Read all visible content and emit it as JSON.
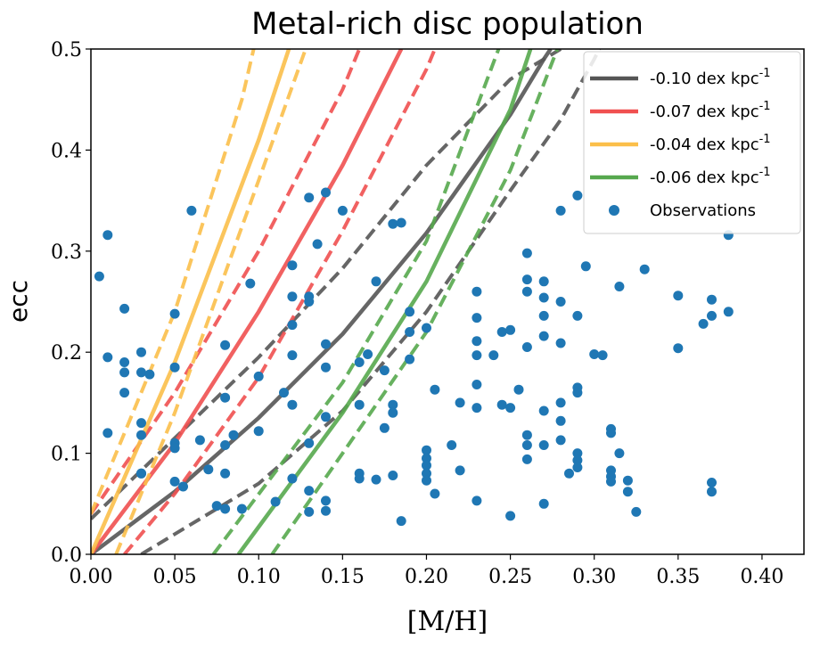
{
  "chart_data": {
    "type": "scatter",
    "title": "Metal-rich disc population",
    "xlabel": "[M/H]",
    "ylabel": "ecc",
    "xlim": [
      0.0,
      0.425
    ],
    "ylim": [
      0.0,
      0.5
    ],
    "xticks": [
      "0.00",
      "0.05",
      "0.10",
      "0.15",
      "0.20",
      "0.25",
      "0.30",
      "0.35",
      "0.40"
    ],
    "yticks": [
      "0.0",
      "0.1",
      "0.2",
      "0.3",
      "0.4",
      "0.5"
    ],
    "grid": false,
    "legend_position": "top-right",
    "series": [
      {
        "name": "-0.10 dex kpc",
        "name_superscript": "-1",
        "kind": "model",
        "color": "#555555",
        "center": [
          [
            0.0,
            0.0
          ],
          [
            0.05,
            0.062
          ],
          [
            0.1,
            0.135
          ],
          [
            0.15,
            0.218
          ],
          [
            0.2,
            0.318
          ],
          [
            0.25,
            0.435
          ],
          [
            0.27,
            0.49
          ],
          [
            0.274,
            0.5
          ]
        ],
        "upper": [
          [
            0.0,
            0.035
          ],
          [
            0.05,
            0.115
          ],
          [
            0.1,
            0.195
          ],
          [
            0.15,
            0.283
          ],
          [
            0.2,
            0.385
          ],
          [
            0.25,
            0.47
          ],
          [
            0.28,
            0.5
          ]
        ],
        "lower": [
          [
            0.03,
            0.0
          ],
          [
            0.1,
            0.07
          ],
          [
            0.15,
            0.142
          ],
          [
            0.2,
            0.24
          ],
          [
            0.25,
            0.36
          ],
          [
            0.28,
            0.43
          ],
          [
            0.3,
            0.49
          ],
          [
            0.303,
            0.5
          ]
        ]
      },
      {
        "name": "-0.07 dex kpc",
        "name_superscript": "-1",
        "kind": "model",
        "color": "#f05050",
        "center": [
          [
            0.0,
            0.0
          ],
          [
            0.05,
            0.11
          ],
          [
            0.1,
            0.24
          ],
          [
            0.15,
            0.385
          ],
          [
            0.185,
            0.5
          ]
        ],
        "upper": [
          [
            0.0,
            0.04
          ],
          [
            0.05,
            0.16
          ],
          [
            0.1,
            0.3
          ],
          [
            0.15,
            0.46
          ],
          [
            0.16,
            0.5
          ]
        ],
        "lower": [
          [
            0.02,
            0.0
          ],
          [
            0.05,
            0.06
          ],
          [
            0.1,
            0.175
          ],
          [
            0.15,
            0.32
          ],
          [
            0.2,
            0.48
          ],
          [
            0.205,
            0.5
          ]
        ]
      },
      {
        "name": "-0.04 dex kpc",
        "name_superscript": "-1",
        "kind": "model",
        "color": "#fbbf4a",
        "center": [
          [
            0.0,
            0.0
          ],
          [
            0.05,
            0.19
          ],
          [
            0.1,
            0.41
          ],
          [
            0.118,
            0.5
          ]
        ],
        "upper": [
          [
            0.0,
            0.04
          ],
          [
            0.05,
            0.24
          ],
          [
            0.09,
            0.45
          ],
          [
            0.097,
            0.5
          ]
        ],
        "lower": [
          [
            0.015,
            0.0
          ],
          [
            0.05,
            0.14
          ],
          [
            0.1,
            0.37
          ],
          [
            0.128,
            0.5
          ]
        ]
      },
      {
        "name": "-0.06 dex kpc",
        "name_superscript": "-1",
        "kind": "model",
        "color": "#56a84e",
        "center": [
          [
            0.088,
            0.0
          ],
          [
            0.15,
            0.14
          ],
          [
            0.2,
            0.27
          ],
          [
            0.25,
            0.44
          ],
          [
            0.262,
            0.5
          ]
        ],
        "upper": [
          [
            0.073,
            0.0
          ],
          [
            0.15,
            0.17
          ],
          [
            0.2,
            0.31
          ],
          [
            0.243,
            0.5
          ]
        ],
        "lower": [
          [
            0.108,
            0.0
          ],
          [
            0.15,
            0.1
          ],
          [
            0.2,
            0.22
          ],
          [
            0.25,
            0.38
          ],
          [
            0.278,
            0.5
          ]
        ]
      },
      {
        "name": "Observations",
        "kind": "scatter",
        "color": "#1f77b4",
        "points": [
          [
            0.005,
            0.275
          ],
          [
            0.01,
            0.316
          ],
          [
            0.01,
            0.195
          ],
          [
            0.01,
            0.12
          ],
          [
            0.02,
            0.243
          ],
          [
            0.02,
            0.19
          ],
          [
            0.02,
            0.18
          ],
          [
            0.02,
            0.16
          ],
          [
            0.03,
            0.2
          ],
          [
            0.03,
            0.18
          ],
          [
            0.035,
            0.178
          ],
          [
            0.03,
            0.13
          ],
          [
            0.03,
            0.118
          ],
          [
            0.03,
            0.08
          ],
          [
            0.03,
            0.08
          ],
          [
            0.05,
            0.238
          ],
          [
            0.05,
            0.185
          ],
          [
            0.05,
            0.11
          ],
          [
            0.05,
            0.105
          ],
          [
            0.05,
            0.072
          ],
          [
            0.055,
            0.067
          ],
          [
            0.06,
            0.34
          ],
          [
            0.065,
            0.113
          ],
          [
            0.07,
            0.084
          ],
          [
            0.075,
            0.048
          ],
          [
            0.08,
            0.207
          ],
          [
            0.08,
            0.155
          ],
          [
            0.08,
            0.108
          ],
          [
            0.08,
            0.08
          ],
          [
            0.08,
            0.045
          ],
          [
            0.085,
            0.118
          ],
          [
            0.09,
            0.045
          ],
          [
            0.095,
            0.268
          ],
          [
            0.1,
            0.176
          ],
          [
            0.1,
            0.122
          ],
          [
            0.11,
            0.052
          ],
          [
            0.115,
            0.16
          ],
          [
            0.12,
            0.286
          ],
          [
            0.12,
            0.255
          ],
          [
            0.12,
            0.227
          ],
          [
            0.12,
            0.197
          ],
          [
            0.12,
            0.148
          ],
          [
            0.12,
            0.075
          ],
          [
            0.13,
            0.353
          ],
          [
            0.13,
            0.255
          ],
          [
            0.13,
            0.25
          ],
          [
            0.13,
            0.11
          ],
          [
            0.13,
            0.063
          ],
          [
            0.13,
            0.042
          ],
          [
            0.135,
            0.307
          ],
          [
            0.14,
            0.358
          ],
          [
            0.14,
            0.208
          ],
          [
            0.14,
            0.185
          ],
          [
            0.14,
            0.136
          ],
          [
            0.14,
            0.053
          ],
          [
            0.14,
            0.043
          ],
          [
            0.15,
            0.34
          ],
          [
            0.16,
            0.19
          ],
          [
            0.16,
            0.148
          ],
          [
            0.16,
            0.08
          ],
          [
            0.16,
            0.075
          ],
          [
            0.165,
            0.198
          ],
          [
            0.17,
            0.27
          ],
          [
            0.17,
            0.074
          ],
          [
            0.175,
            0.182
          ],
          [
            0.175,
            0.125
          ],
          [
            0.18,
            0.327
          ],
          [
            0.18,
            0.148
          ],
          [
            0.18,
            0.14
          ],
          [
            0.18,
            0.078
          ],
          [
            0.185,
            0.328
          ],
          [
            0.185,
            0.033
          ],
          [
            0.19,
            0.24
          ],
          [
            0.19,
            0.22
          ],
          [
            0.19,
            0.193
          ],
          [
            0.2,
            0.224
          ],
          [
            0.2,
            0.103
          ],
          [
            0.2,
            0.095
          ],
          [
            0.2,
            0.088
          ],
          [
            0.2,
            0.08
          ],
          [
            0.2,
            0.073
          ],
          [
            0.205,
            0.163
          ],
          [
            0.205,
            0.06
          ],
          [
            0.215,
            0.108
          ],
          [
            0.22,
            0.15
          ],
          [
            0.22,
            0.083
          ],
          [
            0.23,
            0.26
          ],
          [
            0.23,
            0.234
          ],
          [
            0.23,
            0.211
          ],
          [
            0.23,
            0.197
          ],
          [
            0.23,
            0.168
          ],
          [
            0.23,
            0.145
          ],
          [
            0.23,
            0.053
          ],
          [
            0.24,
            0.197
          ],
          [
            0.245,
            0.22
          ],
          [
            0.245,
            0.148
          ],
          [
            0.25,
            0.222
          ],
          [
            0.25,
            0.145
          ],
          [
            0.25,
            0.038
          ],
          [
            0.255,
            0.163
          ],
          [
            0.26,
            0.298
          ],
          [
            0.26,
            0.272
          ],
          [
            0.26,
            0.26
          ],
          [
            0.26,
            0.205
          ],
          [
            0.26,
            0.118
          ],
          [
            0.26,
            0.108
          ],
          [
            0.26,
            0.094
          ],
          [
            0.27,
            0.27
          ],
          [
            0.27,
            0.254
          ],
          [
            0.27,
            0.236
          ],
          [
            0.27,
            0.216
          ],
          [
            0.27,
            0.142
          ],
          [
            0.27,
            0.108
          ],
          [
            0.27,
            0.05
          ],
          [
            0.28,
            0.34
          ],
          [
            0.28,
            0.25
          ],
          [
            0.28,
            0.209
          ],
          [
            0.28,
            0.15
          ],
          [
            0.28,
            0.132
          ],
          [
            0.28,
            0.113
          ],
          [
            0.285,
            0.08
          ],
          [
            0.29,
            0.355
          ],
          [
            0.29,
            0.236
          ],
          [
            0.29,
            0.165
          ],
          [
            0.29,
            0.16
          ],
          [
            0.29,
            0.1
          ],
          [
            0.29,
            0.093
          ],
          [
            0.29,
            0.086
          ],
          [
            0.295,
            0.285
          ],
          [
            0.3,
            0.198
          ],
          [
            0.305,
            0.197
          ],
          [
            0.31,
            0.124
          ],
          [
            0.31,
            0.12
          ],
          [
            0.31,
            0.083
          ],
          [
            0.31,
            0.077
          ],
          [
            0.31,
            0.072
          ],
          [
            0.315,
            0.265
          ],
          [
            0.315,
            0.1
          ],
          [
            0.32,
            0.073
          ],
          [
            0.32,
            0.062
          ],
          [
            0.325,
            0.042
          ],
          [
            0.33,
            0.282
          ],
          [
            0.35,
            0.256
          ],
          [
            0.35,
            0.204
          ],
          [
            0.365,
            0.228
          ],
          [
            0.37,
            0.252
          ],
          [
            0.37,
            0.236
          ],
          [
            0.37,
            0.071
          ],
          [
            0.37,
            0.062
          ],
          [
            0.38,
            0.316
          ],
          [
            0.38,
            0.24
          ]
        ]
      }
    ]
  }
}
